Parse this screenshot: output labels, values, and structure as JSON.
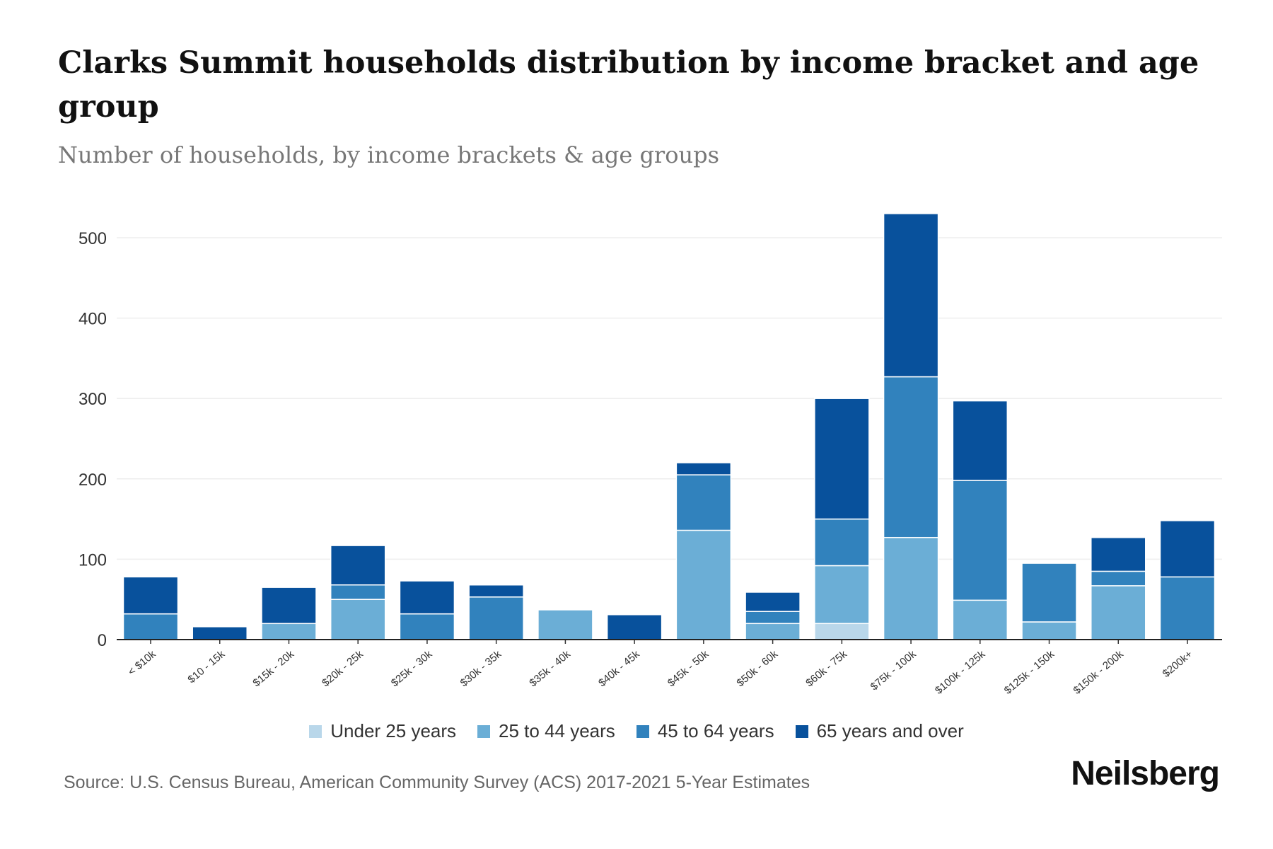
{
  "title": "Clarks Summit households distribution by income bracket and age group",
  "subtitle": "Number of households, by income brackets & age groups",
  "source": "Source: U.S. Census Bureau, American Community Survey (ACS) 2017-2021 5-Year Estimates",
  "logo": "Neilsberg",
  "chart_data": {
    "type": "bar",
    "stacked": true,
    "title": "Clarks Summit households distribution by income bracket and age group",
    "xlabel": "",
    "ylabel": "Number of households",
    "ylim": [
      0,
      550
    ],
    "yticks": [
      0,
      100,
      200,
      300,
      400,
      500
    ],
    "grid": true,
    "legend_position": "bottom",
    "categories": [
      "< $10k",
      "$10 - 15k",
      "$15k - 20k",
      "$20k - 25k",
      "$25k - 30k",
      "$30k - 35k",
      "$35k - 40k",
      "$40k - 45k",
      "$45k - 50k",
      "$50k - 60k",
      "$60k - 75k",
      "$75k - 100k",
      "$100k - 125k",
      "$125k - 150k",
      "$150k - 200k",
      "$200k+"
    ],
    "series": [
      {
        "name": "Under 25 years",
        "color": "#b9d7ea",
        "values": [
          0,
          0,
          0,
          0,
          0,
          0,
          0,
          0,
          0,
          0,
          20,
          0,
          0,
          0,
          0,
          0
        ]
      },
      {
        "name": "25 to 44 years",
        "color": "#6baed6",
        "values": [
          0,
          0,
          20,
          50,
          0,
          0,
          37,
          0,
          136,
          20,
          72,
          127,
          49,
          22,
          67,
          0
        ]
      },
      {
        "name": "45 to 64 years",
        "color": "#3182bd",
        "values": [
          32,
          0,
          0,
          18,
          32,
          53,
          0,
          0,
          69,
          15,
          58,
          200,
          149,
          73,
          18,
          78
        ]
      },
      {
        "name": "65 years and over",
        "color": "#08519c",
        "values": [
          46,
          16,
          45,
          49,
          41,
          15,
          0,
          31,
          15,
          24,
          150,
          203,
          99,
          0,
          42,
          70
        ]
      }
    ]
  }
}
